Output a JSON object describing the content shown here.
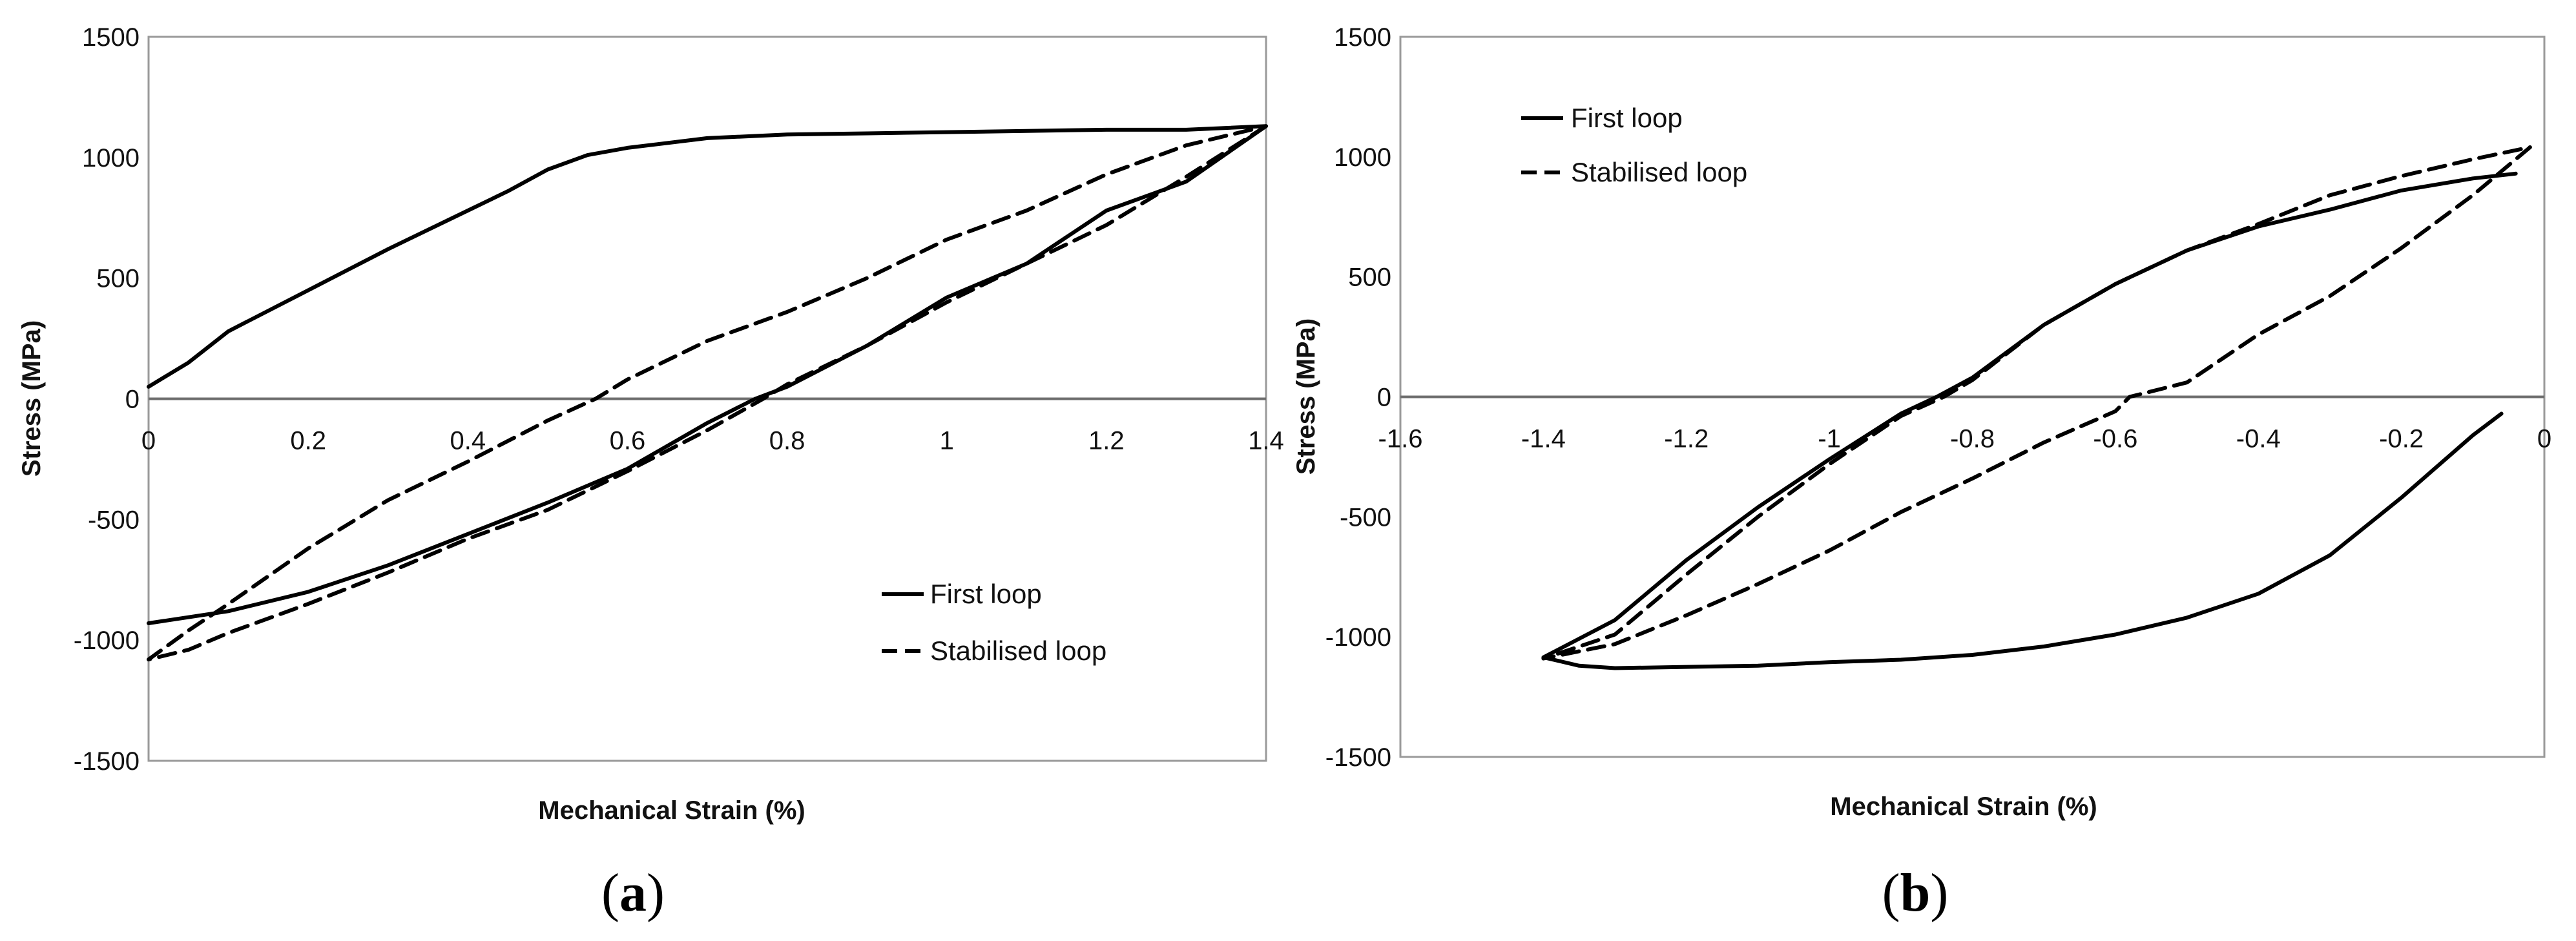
{
  "chart_data": [
    {
      "type": "line",
      "panel_label_open": "(",
      "panel_label_letter": "a",
      "panel_label_close": ")",
      "xlabel": "Mechanical Strain (%)",
      "ylabel": "Stress (MPa)",
      "xlim": [
        0,
        1.4
      ],
      "ylim": [
        -1500,
        1500
      ],
      "xticks": [
        0,
        0.2,
        0.4,
        0.6,
        0.8,
        1,
        1.2,
        1.4
      ],
      "xtick_labels": [
        "0",
        "0.2",
        "0.4",
        "0.6",
        "0.8",
        "1",
        "1.2",
        "1.4"
      ],
      "yticks": [
        -1500,
        -1000,
        -500,
        0,
        500,
        1000,
        1500
      ],
      "ytick_labels": [
        "-1500",
        "-1000",
        "-500",
        "0",
        "500",
        "1000",
        "1500"
      ],
      "grid": false,
      "legend_position": "bottom-right",
      "series": [
        {
          "name": "First loop",
          "style": "solid",
          "x": [
            0,
            0.05,
            0.1,
            0.2,
            0.3,
            0.4,
            0.45,
            0.5,
            0.55,
            0.6,
            0.7,
            0.8,
            0.9,
            1.0,
            1.1,
            1.2,
            1.3,
            1.4,
            1.3,
            1.2,
            1.1,
            1.0,
            0.9,
            0.8,
            0.76,
            0.7,
            0.6,
            0.5,
            0.4,
            0.3,
            0.2,
            0.1,
            0.0
          ],
          "y": [
            50,
            150,
            280,
            450,
            620,
            780,
            860,
            950,
            1010,
            1040,
            1080,
            1095,
            1100,
            1105,
            1110,
            1115,
            1115,
            1130,
            900,
            780,
            560,
            420,
            220,
            50,
            0,
            -100,
            -290,
            -430,
            -560,
            -690,
            -800,
            -880,
            -930
          ]
        },
        {
          "name": "Stabilised loop",
          "style": "dashed",
          "x": [
            1.4,
            1.3,
            1.2,
            1.1,
            1.0,
            0.9,
            0.8,
            0.77,
            0.7,
            0.6,
            0.5,
            0.4,
            0.3,
            0.2,
            0.1,
            0.05,
            0.0,
            0.05,
            0.1,
            0.2,
            0.3,
            0.4,
            0.5,
            0.56,
            0.6,
            0.7,
            0.8,
            0.9,
            1.0,
            1.1,
            1.2,
            1.3,
            1.4
          ],
          "y": [
            1130,
            920,
            720,
            560,
            400,
            220,
            60,
            0,
            -130,
            -300,
            -460,
            -580,
            -720,
            -850,
            -970,
            -1040,
            -1080,
            -960,
            -850,
            -620,
            -420,
            -260,
            -90,
            0,
            80,
            240,
            360,
            500,
            660,
            780,
            930,
            1050,
            1130
          ]
        }
      ]
    },
    {
      "type": "line",
      "panel_label_open": "(",
      "panel_label_letter": "b",
      "panel_label_close": ")",
      "xlabel": "Mechanical Strain (%)",
      "ylabel": "Stress (MPa)",
      "xlim": [
        -1.6,
        0
      ],
      "ylim": [
        -1500,
        1500
      ],
      "xticks": [
        -1.6,
        -1.4,
        -1.2,
        -1,
        -0.8,
        -0.6,
        -0.4,
        -0.2,
        0
      ],
      "xtick_labels": [
        "-1.6",
        "-1.4",
        "-1.2",
        "-1",
        "-0.8",
        "-0.6",
        "-0.4",
        "-0.2",
        "0"
      ],
      "yticks": [
        -1500,
        -1000,
        -500,
        0,
        500,
        1000,
        1500
      ],
      "ytick_labels": [
        "-1500",
        "-1000",
        "-500",
        "0",
        "500",
        "1000",
        "1500"
      ],
      "grid": false,
      "legend_position": "top-left",
      "series": [
        {
          "name": "First loop",
          "style": "solid",
          "x": [
            -0.06,
            -0.1,
            -0.2,
            -0.3,
            -0.4,
            -0.5,
            -0.6,
            -0.7,
            -0.8,
            -0.9,
            -1.0,
            -1.1,
            -1.2,
            -1.3,
            -1.35,
            -1.4,
            -1.3,
            -1.2,
            -1.1,
            -1.0,
            -0.9,
            -0.85,
            -0.8,
            -0.7,
            -0.6,
            -0.5,
            -0.4,
            -0.3,
            -0.2,
            -0.1,
            -0.04
          ],
          "y": [
            -70,
            -160,
            -420,
            -660,
            -820,
            -920,
            -990,
            -1040,
            -1075,
            -1095,
            -1105,
            -1120,
            -1125,
            -1130,
            -1120,
            -1085,
            -930,
            -680,
            -460,
            -260,
            -70,
            0,
            80,
            300,
            470,
            610,
            710,
            780,
            860,
            910,
            930
          ]
        },
        {
          "name": "Stabilised loop",
          "style": "dashed",
          "x": [
            -0.02,
            -0.1,
            -0.2,
            -0.3,
            -0.4,
            -0.5,
            -0.58,
            -0.6,
            -0.7,
            -0.8,
            -0.9,
            -1.0,
            -1.1,
            -1.2,
            -1.3,
            -1.4,
            -1.3,
            -1.2,
            -1.1,
            -1.0,
            -0.9,
            -0.84,
            -0.8,
            -0.7,
            -0.6,
            -0.5,
            -0.4,
            -0.3,
            -0.2,
            -0.1,
            -0.02
          ],
          "y": [
            1040,
            840,
            620,
            420,
            260,
            60,
            0,
            -60,
            -190,
            -340,
            -480,
            -640,
            -780,
            -910,
            -1030,
            -1090,
            -990,
            -740,
            -500,
            -280,
            -80,
            0,
            70,
            300,
            470,
            610,
            720,
            840,
            920,
            990,
            1040
          ]
        }
      ]
    }
  ]
}
